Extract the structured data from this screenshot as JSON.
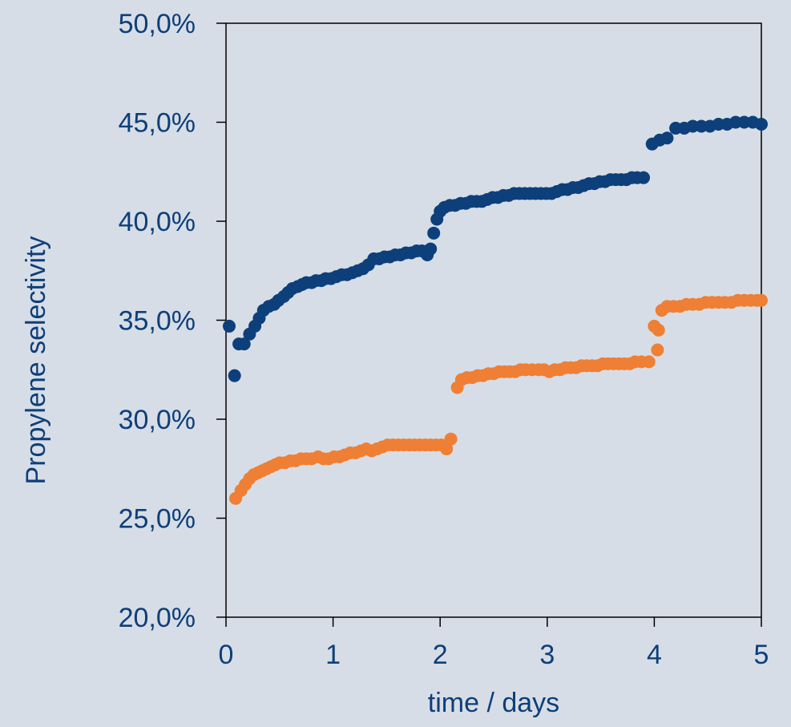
{
  "chart_data": {
    "type": "scatter",
    "title": "",
    "xlabel": "time / days",
    "ylabel": "Propylene selectivity",
    "xlim": [
      0,
      5
    ],
    "ylim": [
      0.2,
      0.5
    ],
    "x_ticks": [
      0,
      1,
      2,
      3,
      4,
      5
    ],
    "y_ticks": [
      0.2,
      0.25,
      0.3,
      0.35,
      0.4,
      0.45,
      0.5
    ],
    "x_tick_labels": [
      "0",
      "1",
      "2",
      "3",
      "4",
      "5"
    ],
    "y_tick_labels": [
      "20,0%",
      "25,0%",
      "30,0%",
      "35,0%",
      "40,0%",
      "45,0%",
      "50,0%"
    ],
    "grid": false,
    "legend": "none",
    "background_color": "#d7dde6",
    "axis_color": "#000000",
    "label_color": "#0d3f7a",
    "series": [
      {
        "color": "#0d3f7a",
        "points": [
          [
            0.03,
            0.347
          ],
          [
            0.08,
            0.322
          ],
          [
            0.12,
            0.338
          ],
          [
            0.17,
            0.338
          ],
          [
            0.22,
            0.343
          ],
          [
            0.27,
            0.347
          ],
          [
            0.31,
            0.351
          ],
          [
            0.35,
            0.355
          ],
          [
            0.4,
            0.357
          ],
          [
            0.45,
            0.358
          ],
          [
            0.49,
            0.36
          ],
          [
            0.54,
            0.362
          ],
          [
            0.58,
            0.364
          ],
          [
            0.62,
            0.366
          ],
          [
            0.67,
            0.367
          ],
          [
            0.71,
            0.368
          ],
          [
            0.75,
            0.369
          ],
          [
            0.8,
            0.369
          ],
          [
            0.84,
            0.37
          ],
          [
            0.89,
            0.37
          ],
          [
            0.93,
            0.371
          ],
          [
            0.98,
            0.371
          ],
          [
            1.03,
            0.372
          ],
          [
            1.08,
            0.373
          ],
          [
            1.13,
            0.373
          ],
          [
            1.18,
            0.374
          ],
          [
            1.23,
            0.375
          ],
          [
            1.28,
            0.376
          ],
          [
            1.33,
            0.378
          ],
          [
            1.38,
            0.381
          ],
          [
            1.43,
            0.381
          ],
          [
            1.48,
            0.382
          ],
          [
            1.53,
            0.382
          ],
          [
            1.58,
            0.383
          ],
          [
            1.63,
            0.383
          ],
          [
            1.68,
            0.384
          ],
          [
            1.73,
            0.384
          ],
          [
            1.78,
            0.385
          ],
          [
            1.83,
            0.385
          ],
          [
            1.88,
            0.383
          ],
          [
            1.91,
            0.386
          ],
          [
            1.94,
            0.394
          ],
          [
            1.97,
            0.401
          ],
          [
            2.0,
            0.405
          ],
          [
            2.04,
            0.407
          ],
          [
            2.09,
            0.408
          ],
          [
            2.14,
            0.408
          ],
          [
            2.19,
            0.409
          ],
          [
            2.24,
            0.409
          ],
          [
            2.29,
            0.41
          ],
          [
            2.34,
            0.41
          ],
          [
            2.39,
            0.41
          ],
          [
            2.44,
            0.411
          ],
          [
            2.49,
            0.412
          ],
          [
            2.54,
            0.412
          ],
          [
            2.59,
            0.413
          ],
          [
            2.64,
            0.413
          ],
          [
            2.69,
            0.414
          ],
          [
            2.74,
            0.414
          ],
          [
            2.79,
            0.414
          ],
          [
            2.84,
            0.414
          ],
          [
            2.89,
            0.414
          ],
          [
            2.94,
            0.414
          ],
          [
            2.99,
            0.414
          ],
          [
            3.04,
            0.414
          ],
          [
            3.09,
            0.415
          ],
          [
            3.14,
            0.416
          ],
          [
            3.19,
            0.416
          ],
          [
            3.24,
            0.417
          ],
          [
            3.29,
            0.417
          ],
          [
            3.34,
            0.418
          ],
          [
            3.39,
            0.419
          ],
          [
            3.44,
            0.419
          ],
          [
            3.49,
            0.42
          ],
          [
            3.54,
            0.42
          ],
          [
            3.59,
            0.421
          ],
          [
            3.64,
            0.421
          ],
          [
            3.69,
            0.421
          ],
          [
            3.74,
            0.421
          ],
          [
            3.79,
            0.422
          ],
          [
            3.84,
            0.422
          ],
          [
            3.9,
            0.422
          ],
          [
            3.98,
            0.439
          ],
          [
            4.05,
            0.441
          ],
          [
            4.12,
            0.442
          ],
          [
            4.2,
            0.447
          ],
          [
            4.28,
            0.447
          ],
          [
            4.36,
            0.448
          ],
          [
            4.44,
            0.448
          ],
          [
            4.52,
            0.448
          ],
          [
            4.6,
            0.449
          ],
          [
            4.68,
            0.449
          ],
          [
            4.76,
            0.45
          ],
          [
            4.84,
            0.45
          ],
          [
            4.92,
            0.45
          ],
          [
            5.0,
            0.449
          ]
        ]
      },
      {
        "color": "#ef7f34",
        "points": [
          [
            0.09,
            0.26
          ],
          [
            0.14,
            0.264
          ],
          [
            0.18,
            0.267
          ],
          [
            0.22,
            0.27
          ],
          [
            0.26,
            0.272
          ],
          [
            0.3,
            0.273
          ],
          [
            0.34,
            0.274
          ],
          [
            0.38,
            0.275
          ],
          [
            0.42,
            0.276
          ],
          [
            0.46,
            0.277
          ],
          [
            0.5,
            0.278
          ],
          [
            0.55,
            0.278
          ],
          [
            0.6,
            0.279
          ],
          [
            0.65,
            0.279
          ],
          [
            0.7,
            0.28
          ],
          [
            0.75,
            0.28
          ],
          [
            0.8,
            0.28
          ],
          [
            0.86,
            0.281
          ],
          [
            0.91,
            0.28
          ],
          [
            0.96,
            0.28
          ],
          [
            1.01,
            0.281
          ],
          [
            1.06,
            0.281
          ],
          [
            1.11,
            0.282
          ],
          [
            1.16,
            0.283
          ],
          [
            1.21,
            0.283
          ],
          [
            1.26,
            0.284
          ],
          [
            1.31,
            0.285
          ],
          [
            1.36,
            0.284
          ],
          [
            1.41,
            0.285
          ],
          [
            1.46,
            0.286
          ],
          [
            1.51,
            0.287
          ],
          [
            1.56,
            0.287
          ],
          [
            1.61,
            0.287
          ],
          [
            1.66,
            0.287
          ],
          [
            1.71,
            0.287
          ],
          [
            1.76,
            0.287
          ],
          [
            1.81,
            0.287
          ],
          [
            1.86,
            0.287
          ],
          [
            1.91,
            0.287
          ],
          [
            1.96,
            0.287
          ],
          [
            2.01,
            0.287
          ],
          [
            2.06,
            0.285
          ],
          [
            2.1,
            0.29
          ],
          [
            2.16,
            0.316
          ],
          [
            2.2,
            0.32
          ],
          [
            2.25,
            0.321
          ],
          [
            2.3,
            0.321
          ],
          [
            2.35,
            0.322
          ],
          [
            2.4,
            0.322
          ],
          [
            2.45,
            0.323
          ],
          [
            2.5,
            0.323
          ],
          [
            2.55,
            0.324
          ],
          [
            2.6,
            0.324
          ],
          [
            2.65,
            0.324
          ],
          [
            2.7,
            0.324
          ],
          [
            2.75,
            0.325
          ],
          [
            2.8,
            0.325
          ],
          [
            2.86,
            0.325
          ],
          [
            2.92,
            0.325
          ],
          [
            2.97,
            0.325
          ],
          [
            3.02,
            0.324
          ],
          [
            3.07,
            0.325
          ],
          [
            3.12,
            0.325
          ],
          [
            3.17,
            0.326
          ],
          [
            3.22,
            0.326
          ],
          [
            3.27,
            0.326
          ],
          [
            3.32,
            0.327
          ],
          [
            3.37,
            0.327
          ],
          [
            3.42,
            0.327
          ],
          [
            3.47,
            0.327
          ],
          [
            3.52,
            0.328
          ],
          [
            3.57,
            0.328
          ],
          [
            3.62,
            0.328
          ],
          [
            3.67,
            0.328
          ],
          [
            3.72,
            0.328
          ],
          [
            3.77,
            0.328
          ],
          [
            3.82,
            0.329
          ],
          [
            3.88,
            0.329
          ],
          [
            3.95,
            0.329
          ],
          [
            4.0,
            0.347
          ],
          [
            4.03,
            0.335
          ],
          [
            4.04,
            0.345
          ],
          [
            4.07,
            0.355
          ],
          [
            4.12,
            0.357
          ],
          [
            4.18,
            0.357
          ],
          [
            4.24,
            0.357
          ],
          [
            4.3,
            0.358
          ],
          [
            4.36,
            0.358
          ],
          [
            4.42,
            0.358
          ],
          [
            4.48,
            0.359
          ],
          [
            4.54,
            0.359
          ],
          [
            4.6,
            0.359
          ],
          [
            4.66,
            0.359
          ],
          [
            4.72,
            0.359
          ],
          [
            4.78,
            0.36
          ],
          [
            4.84,
            0.36
          ],
          [
            4.9,
            0.36
          ],
          [
            4.96,
            0.36
          ],
          [
            5.0,
            0.36
          ]
        ]
      }
    ]
  }
}
